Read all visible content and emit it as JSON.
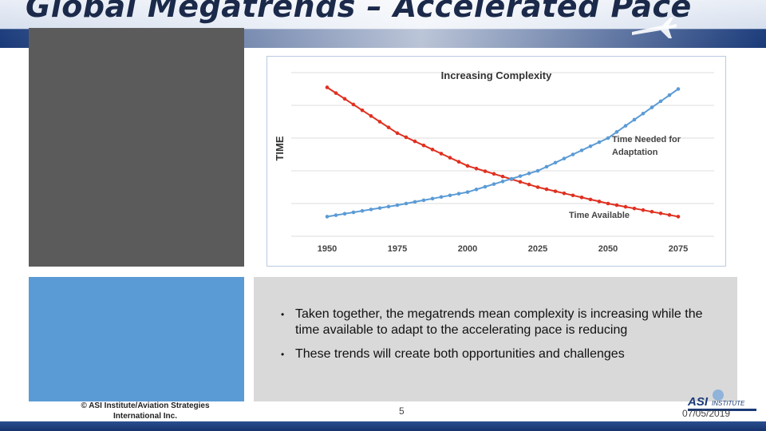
{
  "slide": {
    "title": "Global Megatrends – Accelerated Pace",
    "bullets": [
      "Taken together, the megatrends mean complexity is increasing while the time available to adapt to the accelerating pace is reducing",
      "These trends will create both opportunities and challenges"
    ],
    "copyright": "© ASI Institute/Aviation Strategies International Inc.",
    "page_number": "5",
    "date": "07/05/2019",
    "logo_text": "ASI",
    "logo_subtext": "INSTITUTE"
  },
  "colors": {
    "blue_panel": "#5b9bd5",
    "gray_panel": "#5b5b5b",
    "text_panel": "#d9d9d9",
    "time_available": "#e03020",
    "time_needed": "#5b9bd5"
  },
  "chart_data": {
    "type": "line",
    "title": "Increasing Complexity",
    "ylabel": "TIME",
    "xlabel": "",
    "x": [
      1950,
      1975,
      2000,
      2025,
      2050,
      2075
    ],
    "tick_labels": [
      "1950",
      "1975",
      "2000",
      "2025",
      "2050",
      "2075"
    ],
    "ylim": [
      0,
      10
    ],
    "grid": true,
    "legend": "inline labels",
    "series": [
      {
        "name": "Time Available",
        "color": "#e03020",
        "values": [
          9.1,
          6.3,
          4.3,
          3.0,
          2.0,
          1.2
        ]
      },
      {
        "name": "Time Needed for Adaptation",
        "color": "#5b9bd5",
        "values": [
          1.2,
          1.9,
          2.7,
          4.0,
          6.0,
          9.0
        ]
      }
    ],
    "series_labels": {
      "time_needed": [
        "Time Needed for",
        "Adaptation"
      ],
      "time_available": "Time Available"
    }
  }
}
